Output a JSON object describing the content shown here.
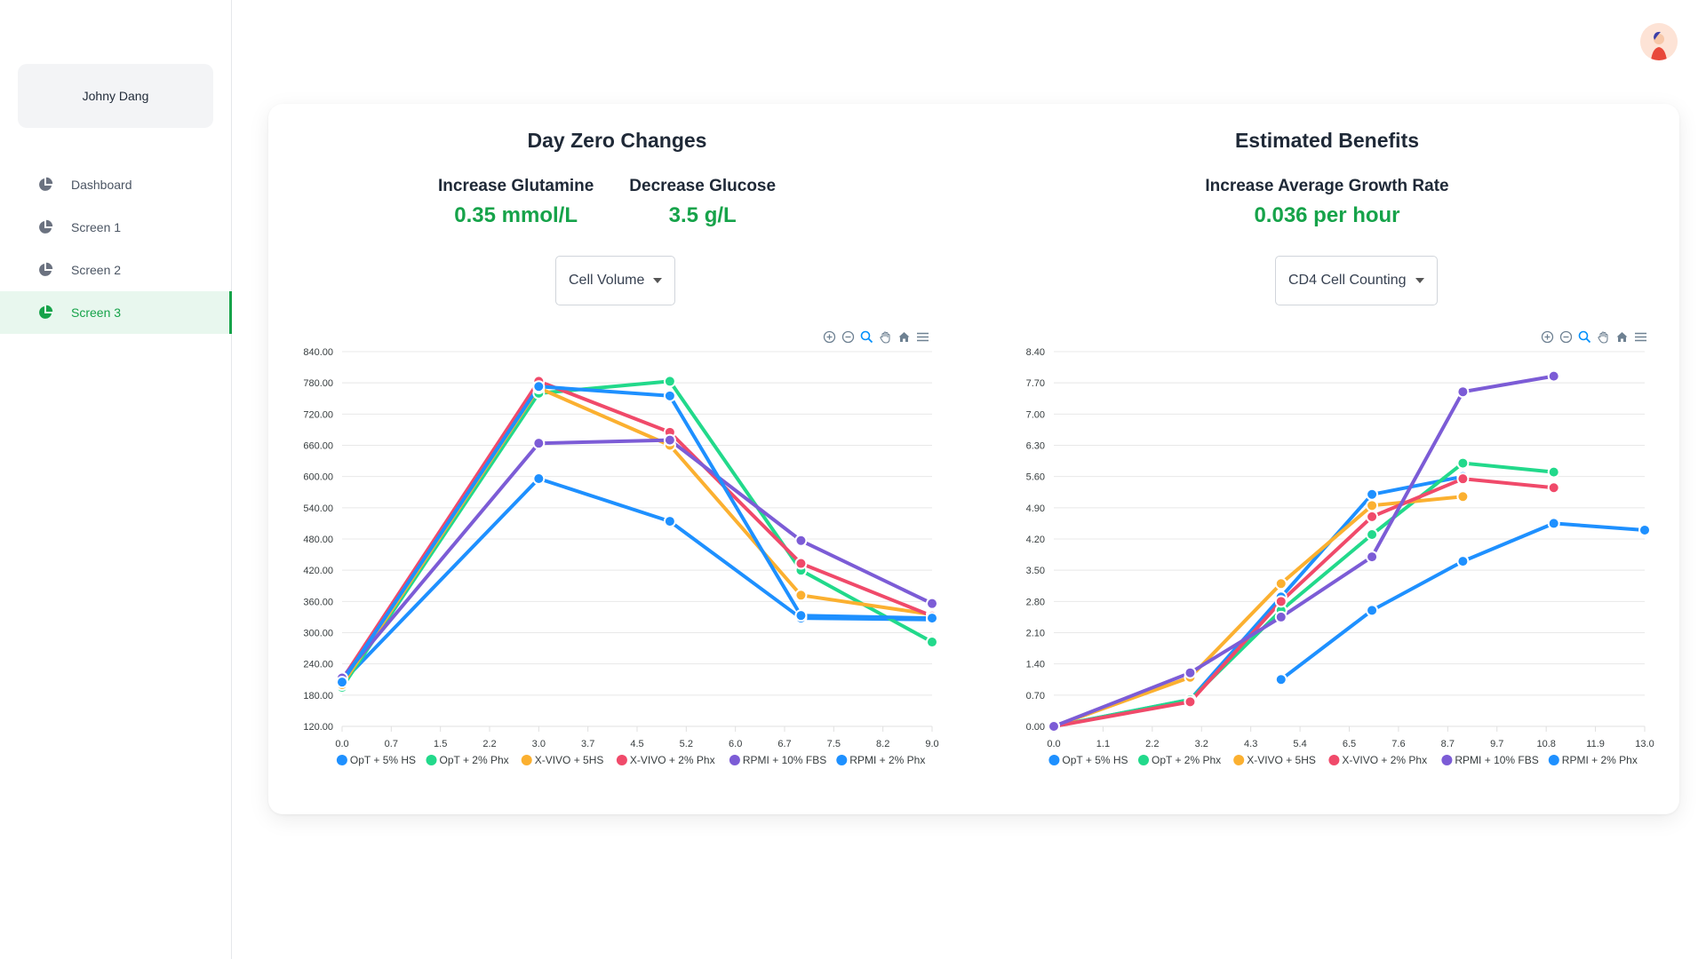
{
  "sidebar": {
    "user_name": "Johny Dang",
    "items": [
      {
        "label": "Dashboard",
        "active": false
      },
      {
        "label": "Screen 1",
        "active": false
      },
      {
        "label": "Screen 2",
        "active": false
      },
      {
        "label": "Screen 3",
        "active": true
      }
    ]
  },
  "colors": {
    "accent": "#16a34a",
    "series": [
      "#1e90ff",
      "#22d98b",
      "#fbb030",
      "#f04a6a",
      "#7c5cd6",
      "#1e90ff"
    ]
  },
  "left_panel": {
    "title": "Day Zero Changes",
    "metrics": [
      {
        "label": "Increase Glutamine",
        "value": "0.35 mmol/L"
      },
      {
        "label": "Decrease Glucose",
        "value": "3.5 g/L"
      }
    ],
    "dropdown": "Cell Volume"
  },
  "right_panel": {
    "title": "Estimated Benefits",
    "metrics": [
      {
        "label": "Increase Average Growth Rate",
        "value": "0.036 per hour"
      }
    ],
    "dropdown": "CD4 Cell Counting"
  },
  "toolbar_icons": [
    "zoom-in-icon",
    "zoom-out-icon",
    "magnifier-icon",
    "pan-hand-icon",
    "home-icon",
    "menu-icon"
  ],
  "chart_data": [
    {
      "type": "line",
      "x_ticks": [
        "0.0",
        "0.7",
        "1.5",
        "2.2",
        "3.0",
        "3.7",
        "4.5",
        "5.2",
        "6.0",
        "6.7",
        "7.5",
        "8.2",
        "9.0"
      ],
      "y_ticks": [
        "840.00",
        "780.00",
        "720.00",
        "660.00",
        "600.00",
        "540.00",
        "480.00",
        "420.00",
        "360.00",
        "300.00",
        "240.00",
        "180.00",
        "120.00"
      ],
      "xlim": [
        0,
        9
      ],
      "ylim": [
        120,
        840
      ],
      "legend_position": "bottom",
      "series": [
        {
          "name": "OpT + 5% HS",
          "points": [
            [
              0,
              205
            ],
            [
              3,
              596
            ],
            [
              5,
              514
            ],
            [
              7,
              328
            ],
            [
              9,
              325
            ]
          ]
        },
        {
          "name": "OpT + 2% Phx",
          "points": [
            [
              0,
              195
            ],
            [
              3,
              760
            ],
            [
              5,
              783
            ],
            [
              7,
              420
            ],
            [
              9,
              282
            ]
          ]
        },
        {
          "name": "X-VIVO + 5HS",
          "points": [
            [
              0,
              200
            ],
            [
              3,
              770
            ],
            [
              5,
              660
            ],
            [
              7,
              372
            ],
            [
              9,
              335
            ]
          ]
        },
        {
          "name": "X-VIVO + 2% Phx",
          "points": [
            [
              0,
              210
            ],
            [
              3,
              783
            ],
            [
              5,
              685
            ],
            [
              7,
              433
            ],
            [
              9,
              332
            ]
          ]
        },
        {
          "name": "RPMI + 10% FBS",
          "points": [
            [
              0,
              213
            ],
            [
              3,
              664
            ],
            [
              5,
              670
            ],
            [
              7,
              477
            ],
            [
              9,
              356
            ]
          ]
        },
        {
          "name": "RPMI + 2% Phx",
          "points": [
            [
              0,
              205
            ],
            [
              3,
              773
            ],
            [
              5,
              755
            ],
            [
              7,
              333
            ],
            [
              9,
              328
            ]
          ]
        }
      ]
    },
    {
      "type": "line",
      "x_ticks": [
        "0.0",
        "1.1",
        "2.2",
        "3.2",
        "4.3",
        "5.4",
        "6.5",
        "7.6",
        "8.7",
        "9.7",
        "10.8",
        "11.9",
        "13.0"
      ],
      "y_ticks": [
        "8.40",
        "7.70",
        "7.00",
        "6.30",
        "5.60",
        "4.90",
        "4.20",
        "3.50",
        "2.80",
        "2.10",
        "1.40",
        "0.70",
        "0.00"
      ],
      "xlim": [
        0,
        13
      ],
      "ylim": [
        0,
        8.4
      ],
      "legend_position": "bottom",
      "series": [
        {
          "name": "OpT + 5% HS",
          "points": [
            [
              0,
              0
            ],
            [
              3,
              0.6
            ],
            [
              5,
              2.9
            ],
            [
              7,
              5.2
            ],
            [
              9,
              5.6
            ]
          ]
        },
        {
          "name": "OpT + 2% Phx",
          "points": [
            [
              0,
              0
            ],
            [
              3,
              0.6
            ],
            [
              5,
              2.6
            ],
            [
              7,
              4.3
            ],
            [
              9,
              5.9
            ],
            [
              11,
              5.7
            ]
          ]
        },
        {
          "name": "X-VIVO + 5HS",
          "points": [
            [
              0,
              0
            ],
            [
              3,
              1.1
            ],
            [
              5,
              3.2
            ],
            [
              7,
              4.95
            ],
            [
              9,
              5.15
            ]
          ]
        },
        {
          "name": "X-VIVO + 2% Phx",
          "points": [
            [
              0,
              0
            ],
            [
              3,
              0.55
            ],
            [
              5,
              2.8
            ],
            [
              7,
              4.7
            ],
            [
              9,
              5.55
            ],
            [
              11,
              5.35
            ]
          ]
        },
        {
          "name": "RPMI + 10% FBS",
          "points": [
            [
              0,
              0
            ],
            [
              3,
              1.2
            ],
            [
              5,
              2.45
            ],
            [
              7,
              3.8
            ],
            [
              9,
              7.5
            ],
            [
              11,
              7.85
            ]
          ]
        },
        {
          "name": "RPMI + 2% Phx",
          "points": [
            [
              5,
              1.05
            ],
            [
              7,
              2.6
            ],
            [
              9,
              3.7
            ],
            [
              11,
              4.55
            ],
            [
              13,
              4.4
            ]
          ]
        }
      ]
    }
  ]
}
